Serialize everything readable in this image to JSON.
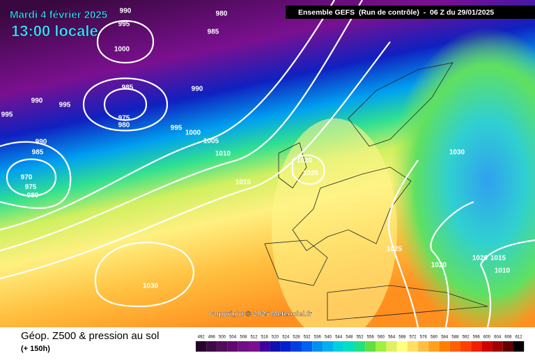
{
  "header": {
    "date": "Mardi 4 février 2025",
    "time": "13:00 locale",
    "run": "Ensemble GEFS  (Run de contrôle)  -  06 Z du 29/01/2025"
  },
  "copyright": "Copyright © 2025 Meteociel.fr",
  "footer": {
    "title": "Géop. Z500 & pression au sol",
    "lead": "(+ 150h)"
  },
  "isobar_labels": [
    "990",
    "980",
    "995",
    "985",
    "1000",
    "990",
    "985",
    "990",
    "995",
    "995",
    "975",
    "980",
    "995",
    "1000",
    "1005",
    "1010",
    "990",
    "985",
    "1020",
    "1025",
    "970",
    "975",
    "980",
    "1015",
    "1025",
    "1020",
    "1020",
    "1015",
    "1010",
    "1030",
    "1030"
  ],
  "scale": {
    "labels": [
      492,
      496,
      500,
      504,
      508,
      512,
      516,
      520,
      524,
      528,
      532,
      536,
      540,
      544,
      548,
      552,
      556,
      560,
      564,
      568,
      572,
      576,
      580,
      584,
      588,
      592,
      596,
      600,
      604,
      608,
      612
    ],
    "colors": [
      "#2a0030",
      "#3d0a45",
      "#500d5a",
      "#600a70",
      "#700f85",
      "#7a1090",
      "#4000a0",
      "#1010b0",
      "#0020d0",
      "#0040e0",
      "#0060f0",
      "#0090f0",
      "#00b0f0",
      "#00d0e0",
      "#00e0c0",
      "#20e080",
      "#60e040",
      "#a0f040",
      "#e0f060",
      "#ffff80",
      "#ffe060",
      "#ffc040",
      "#ffa020",
      "#ff8000",
      "#ff6000",
      "#ff4000",
      "#f02000",
      "#d00000",
      "#a00000",
      "#600000",
      "#000000"
    ]
  }
}
